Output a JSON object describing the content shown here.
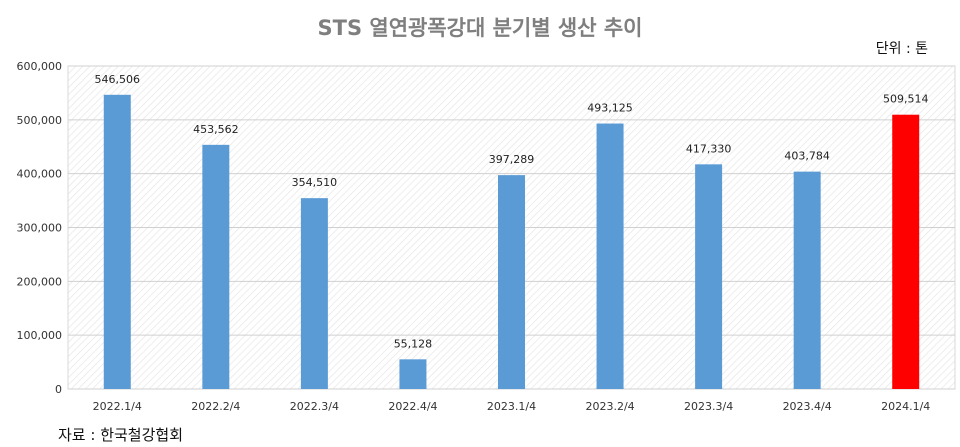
{
  "chart_data": {
    "type": "bar",
    "title": "STS 열연광폭강대 분기별 생산 추이",
    "unit_label": "단위 : 톤",
    "source": "자료 : 한국철강협회",
    "categories": [
      "2022.1/4",
      "2022.2/4",
      "2022.3/4",
      "2022.4/4",
      "2023.1/4",
      "2023.2/4",
      "2023.3/4",
      "2023.4/4",
      "2024.1/4"
    ],
    "values": [
      546506,
      453562,
      354510,
      55128,
      397289,
      493125,
      417330,
      403784,
      509514
    ],
    "value_labels": [
      "546,506",
      "453,562",
      "354,510",
      "55,128",
      "397,289",
      "493,125",
      "417,330",
      "403,784",
      "509,514"
    ],
    "ylim": [
      0,
      600000
    ],
    "yticks": [
      0,
      100000,
      200000,
      300000,
      400000,
      500000,
      600000
    ],
    "ytick_labels": [
      "0",
      "100,000",
      "200,000",
      "300,000",
      "400,000",
      "500,000",
      "600,000"
    ],
    "grid": true,
    "colors": {
      "bar": "#5b9bd5",
      "highlight": "#ff0000"
    },
    "highlight_index": 8
  }
}
